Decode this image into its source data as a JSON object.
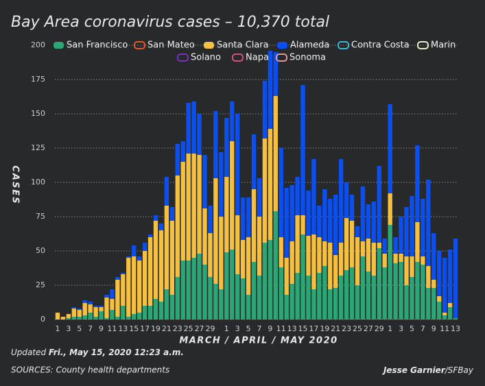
{
  "chart_data": {
    "type": "stacked_bar",
    "title": "Bay Area coronavirus cases – 10,370 total",
    "y_axis_label": "CASES",
    "x_axis_label": "MARCH / APRIL / MAY 2020",
    "updated_label": "Updated",
    "updated_date": "Fri., May 15, 2020 12:23 a.m.",
    "sources": "SOURCES: County health departments",
    "credit_author": "Jesse Garnier",
    "credit_outlet": "/SFBay",
    "categories": [
      "1",
      null,
      "3",
      null,
      "5",
      null,
      "7",
      null,
      "9",
      null,
      "11",
      null,
      "13",
      null,
      "15",
      null,
      "17",
      null,
      "19",
      null,
      "21",
      null,
      "23",
      null,
      "25",
      null,
      "27",
      null,
      "29",
      null,
      null,
      "1",
      null,
      "3",
      null,
      "5",
      null,
      "7",
      null,
      "9",
      null,
      "11",
      null,
      "13",
      null,
      "15",
      null,
      "17",
      null,
      "19",
      null,
      "21",
      null,
      "23",
      null,
      "25",
      null,
      "27",
      null,
      "29",
      null,
      "1",
      null,
      "3",
      null,
      "5",
      null,
      "7",
      null,
      "9",
      null,
      "11",
      null,
      "13"
    ],
    "ylim": [
      0,
      200
    ],
    "yticks": [
      0,
      25,
      50,
      75,
      100,
      125,
      150,
      175,
      200
    ],
    "grid": true,
    "series": [
      {
        "name": "San Francisco",
        "color": "#2ba776",
        "values": [
          0,
          0,
          1,
          2,
          2,
          3,
          5,
          2,
          6,
          1,
          7,
          2,
          10,
          2,
          4,
          5,
          10,
          10,
          15,
          13,
          22,
          18,
          31,
          43,
          43,
          45,
          48,
          40,
          31,
          26,
          22,
          49,
          51,
          33,
          30,
          18,
          42,
          32,
          56,
          58,
          79,
          38,
          18,
          26,
          34,
          62,
          32,
          22,
          34,
          39,
          22,
          23,
          32,
          36,
          38,
          25,
          46,
          35,
          32,
          52,
          38,
          69,
          41,
          42,
          25,
          31,
          42,
          40,
          23,
          23,
          13,
          3,
          9,
          1
        ]
      },
      {
        "name": "San Mateo",
        "color": "#e8562a",
        "hidden": true,
        "values": [
          null,
          null,
          null,
          null,
          null,
          null,
          null,
          null,
          null,
          null,
          null,
          null,
          null,
          null,
          null,
          null,
          null,
          null,
          null,
          null,
          null,
          null,
          null,
          null,
          null,
          null,
          null,
          null,
          null,
          null,
          null,
          null,
          null,
          null,
          null,
          null,
          null,
          null,
          null,
          null,
          null,
          null,
          null,
          null,
          null,
          null,
          null,
          null,
          null,
          null,
          null,
          null,
          null,
          null,
          null,
          null,
          null,
          null,
          null,
          null,
          null,
          null,
          null,
          null,
          null,
          null,
          null,
          null,
          null,
          null,
          null,
          null,
          null,
          null
        ]
      },
      {
        "name": "Santa Clara",
        "color": "#f5c03f",
        "values": [
          5,
          2,
          3,
          6,
          5,
          9,
          6,
          7,
          3,
          15,
          8,
          27,
          23,
          43,
          42,
          38,
          40,
          50,
          57,
          52,
          61,
          54,
          74,
          72,
          78,
          76,
          72,
          41,
          32,
          77,
          53,
          55,
          79,
          43,
          28,
          42,
          53,
          43,
          76,
          81,
          84,
          22,
          27,
          31,
          42,
          14,
          29,
          40,
          26,
          18,
          34,
          24,
          24,
          38,
          34,
          35,
          11,
          24,
          24,
          4,
          10,
          23,
          7,
          6,
          21,
          15,
          29,
          6,
          16,
          6,
          4,
          2,
          3,
          0
        ]
      },
      {
        "name": "Alameda",
        "color": "#0b4ff0",
        "values": [
          0,
          0,
          0,
          1,
          1,
          2,
          2,
          1,
          1,
          2,
          7,
          2,
          1,
          1,
          8,
          3,
          6,
          2,
          4,
          5,
          21,
          10,
          23,
          15,
          37,
          38,
          30,
          39,
          20,
          49,
          47,
          43,
          29,
          74,
          31,
          29,
          40,
          28,
          42,
          57,
          32,
          65,
          51,
          41,
          28,
          95,
          33,
          55,
          23,
          38,
          32,
          44,
          61,
          26,
          19,
          8,
          40,
          25,
          30,
          56,
          11,
          65,
          12,
          27,
          36,
          44,
          56,
          42,
          63,
          34,
          33,
          40,
          39,
          58
        ]
      },
      {
        "name": "Contra Costa",
        "color": "#3bb8d8",
        "hidden": true,
        "values": [
          null,
          null,
          null,
          null,
          null,
          null,
          null,
          null,
          null,
          null,
          null,
          null,
          null,
          null,
          null,
          null,
          null,
          null,
          null,
          null,
          null,
          null,
          null,
          null,
          null,
          null,
          null,
          null,
          null,
          null,
          null,
          null,
          null,
          null,
          null,
          null,
          null,
          null,
          null,
          null,
          null,
          null,
          null,
          null,
          null,
          null,
          null,
          null,
          null,
          null,
          null,
          null,
          null,
          null,
          null,
          null,
          null,
          null,
          null,
          null,
          null,
          null,
          null,
          null,
          null,
          null,
          null,
          null,
          null,
          null,
          null,
          null,
          null,
          null
        ]
      },
      {
        "name": "Marin",
        "color": "#e6f0c8",
        "hidden": true,
        "values": [
          null,
          null,
          null,
          null,
          null,
          null,
          null,
          null,
          null,
          null,
          null,
          null,
          null,
          null,
          null,
          null,
          null,
          null,
          null,
          null,
          null,
          null,
          null,
          null,
          null,
          null,
          null,
          null,
          null,
          null,
          null,
          null,
          null,
          null,
          null,
          null,
          null,
          null,
          null,
          null,
          null,
          null,
          null,
          null,
          null,
          null,
          null,
          null,
          null,
          null,
          null,
          null,
          null,
          null,
          null,
          null,
          null,
          null,
          null,
          null,
          null,
          null,
          null,
          null,
          null,
          null,
          null,
          null,
          null,
          null,
          null,
          null,
          null,
          null
        ]
      },
      {
        "name": "Solano",
        "color": "#7b2fbf",
        "hidden": true,
        "values": [
          null,
          null,
          null,
          null,
          null,
          null,
          null,
          null,
          null,
          null,
          null,
          null,
          null,
          null,
          null,
          null,
          null,
          null,
          null,
          null,
          null,
          null,
          null,
          null,
          null,
          null,
          null,
          null,
          null,
          null,
          null,
          null,
          null,
          null,
          null,
          null,
          null,
          null,
          null,
          null,
          null,
          null,
          null,
          null,
          null,
          null,
          null,
          null,
          null,
          null,
          null,
          null,
          null,
          null,
          null,
          null,
          null,
          null,
          null,
          null,
          null,
          null,
          null,
          null,
          null,
          null,
          null,
          null,
          null,
          null,
          null,
          null,
          null,
          null
        ]
      },
      {
        "name": "Napa",
        "color": "#d94f7a",
        "hidden": true,
        "values": [
          null,
          null,
          null,
          null,
          null,
          null,
          null,
          null,
          null,
          null,
          null,
          null,
          null,
          null,
          null,
          null,
          null,
          null,
          null,
          null,
          null,
          null,
          null,
          null,
          null,
          null,
          null,
          null,
          null,
          null,
          null,
          null,
          null,
          null,
          null,
          null,
          null,
          null,
          null,
          null,
          null,
          null,
          null,
          null,
          null,
          null,
          null,
          null,
          null,
          null,
          null,
          null,
          null,
          null,
          null,
          null,
          null,
          null,
          null,
          null,
          null,
          null,
          null,
          null,
          null,
          null,
          null,
          null,
          null,
          null,
          null,
          null,
          null,
          null
        ]
      },
      {
        "name": "Sonoma",
        "color": "#e89a9a",
        "hidden": true,
        "values": [
          null,
          null,
          null,
          null,
          null,
          null,
          null,
          null,
          null,
          null,
          null,
          null,
          null,
          null,
          null,
          null,
          null,
          null,
          null,
          null,
          null,
          null,
          null,
          null,
          null,
          null,
          null,
          null,
          null,
          null,
          null,
          null,
          null,
          null,
          null,
          null,
          null,
          null,
          null,
          null,
          null,
          null,
          null,
          null,
          null,
          null,
          null,
          null,
          null,
          null,
          null,
          null,
          null,
          null,
          null,
          null,
          null,
          null,
          null,
          null,
          null,
          null,
          null,
          null,
          null,
          null,
          null,
          null,
          null,
          null,
          null,
          null,
          null,
          null
        ]
      }
    ]
  }
}
